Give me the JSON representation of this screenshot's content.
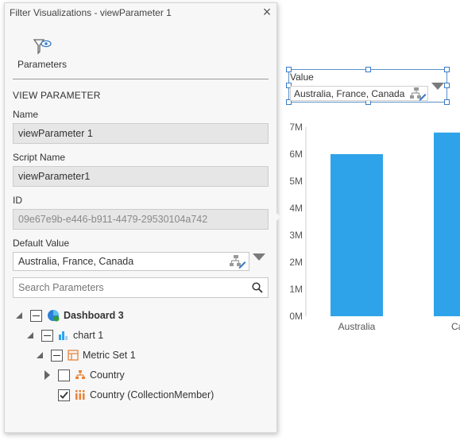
{
  "panel": {
    "title": "Filter Visualizations - viewParameter 1",
    "close_symbol": "×",
    "tab_label": "Parameters",
    "section_heading": "VIEW PARAMETER",
    "name_label": "Name",
    "name_value": "viewParameter 1",
    "script_name_label": "Script Name",
    "script_name_value": "viewParameter1",
    "id_label": "ID",
    "id_value": "09e67e9b-e446-b911-4479-29530104a742",
    "default_value_label": "Default Value",
    "default_value": "Australia, France, Canada",
    "search_placeholder": "Search Parameters"
  },
  "tree": [
    {
      "label": "Dashboard 3",
      "icon": "dashboard-icon",
      "state": "partial",
      "expanded": true
    },
    {
      "label": "chart 1",
      "icon": "bar-chart-icon",
      "state": "partial",
      "expanded": true
    },
    {
      "label": "Metric Set 1",
      "icon": "metric-set-icon",
      "state": "partial",
      "expanded": true
    },
    {
      "label": "Country",
      "icon": "hierarchy-icon",
      "state": "unchecked",
      "expanded": false
    },
    {
      "label": "Country (CollectionMember)",
      "icon": "collection-member-icon",
      "state": "checked",
      "expanded": null
    }
  ],
  "value_widget": {
    "label": "Value",
    "value": "Australia, France, Canada"
  },
  "chart_data": {
    "type": "bar",
    "categories": [
      "Australia",
      "Can"
    ],
    "values": [
      6000000,
      6800000
    ],
    "ylim": [
      0,
      7000000
    ],
    "yticks": [
      "0M",
      "1M",
      "2M",
      "3M",
      "4M",
      "5M",
      "6M",
      "7M"
    ],
    "bar_color": "#2fa3ea",
    "grid": false
  },
  "colors": {
    "accent": "#3a7bc8",
    "bar": "#2fa3ea",
    "icon_orange": "#e8833a"
  }
}
